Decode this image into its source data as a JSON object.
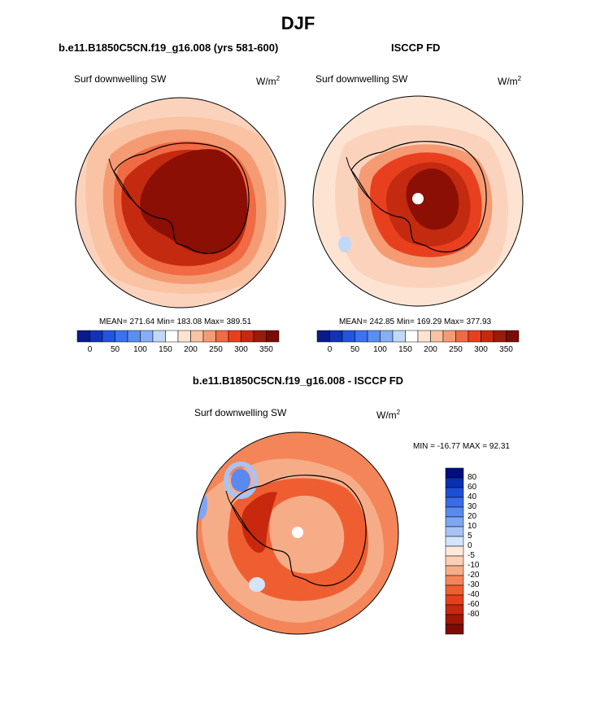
{
  "page": {
    "title": "DJF",
    "diff_title": "b.e11.B1850C5CN.f19_g16.008 - ISCCP FD"
  },
  "panels": [
    {
      "title": "b.e11.B1850C5CN.f19_g16.008 (yrs 581-600)",
      "variable": "Surf downwelling SW",
      "units_base": "W/m",
      "units_exp": "2",
      "stats": "MEAN= 271.64  Min= 183.08  Max= 389.51",
      "has_missing_pole": false
    },
    {
      "title": "ISCCP FD",
      "variable": "Surf downwelling SW",
      "units_base": "W/m",
      "units_exp": "2",
      "stats": "MEAN= 242.85  Min= 169.29  Max= 377.93",
      "has_missing_pole": true
    }
  ],
  "diff_panel": {
    "variable": "Surf downwelling SW",
    "units_base": "W/m",
    "units_exp": "2",
    "stats": "MIN = -16.77 MAX =  92.31",
    "has_missing_pole": true
  },
  "colorbars": {
    "abs": {
      "orientation": "horizontal",
      "colors": [
        "#0a1a8a",
        "#1133b8",
        "#2255dd",
        "#3b72ee",
        "#5b8ef2",
        "#86aef5",
        "#c2d8f7",
        "#ffffff",
        "#fde4d2",
        "#f9c3a4",
        "#f59b74",
        "#f06a43",
        "#e8401e",
        "#c42a10",
        "#9c1a08",
        "#7a0c04"
      ],
      "tick_labels": [
        "0",
        "50",
        "100",
        "150",
        "200",
        "250",
        "300",
        "350"
      ]
    },
    "diff": {
      "orientation": "vertical",
      "colors": [
        "#000e80",
        "#0a2fb0",
        "#1d4fd6",
        "#3a6ce8",
        "#5a89ef",
        "#7ea6f3",
        "#a8c3f6",
        "#d4e4fa",
        "#fde8dc",
        "#fbcfb5",
        "#f7ac88",
        "#f38559",
        "#ef5e31",
        "#e5401b",
        "#c7280e",
        "#9f1707",
        "#7d0b03"
      ],
      "tick_labels": [
        "80",
        "60",
        "40",
        "30",
        "20",
        "10",
        "5",
        "0",
        "-5",
        "-10",
        "-20",
        "-30",
        "-40",
        "-60",
        "-80"
      ]
    }
  }
}
